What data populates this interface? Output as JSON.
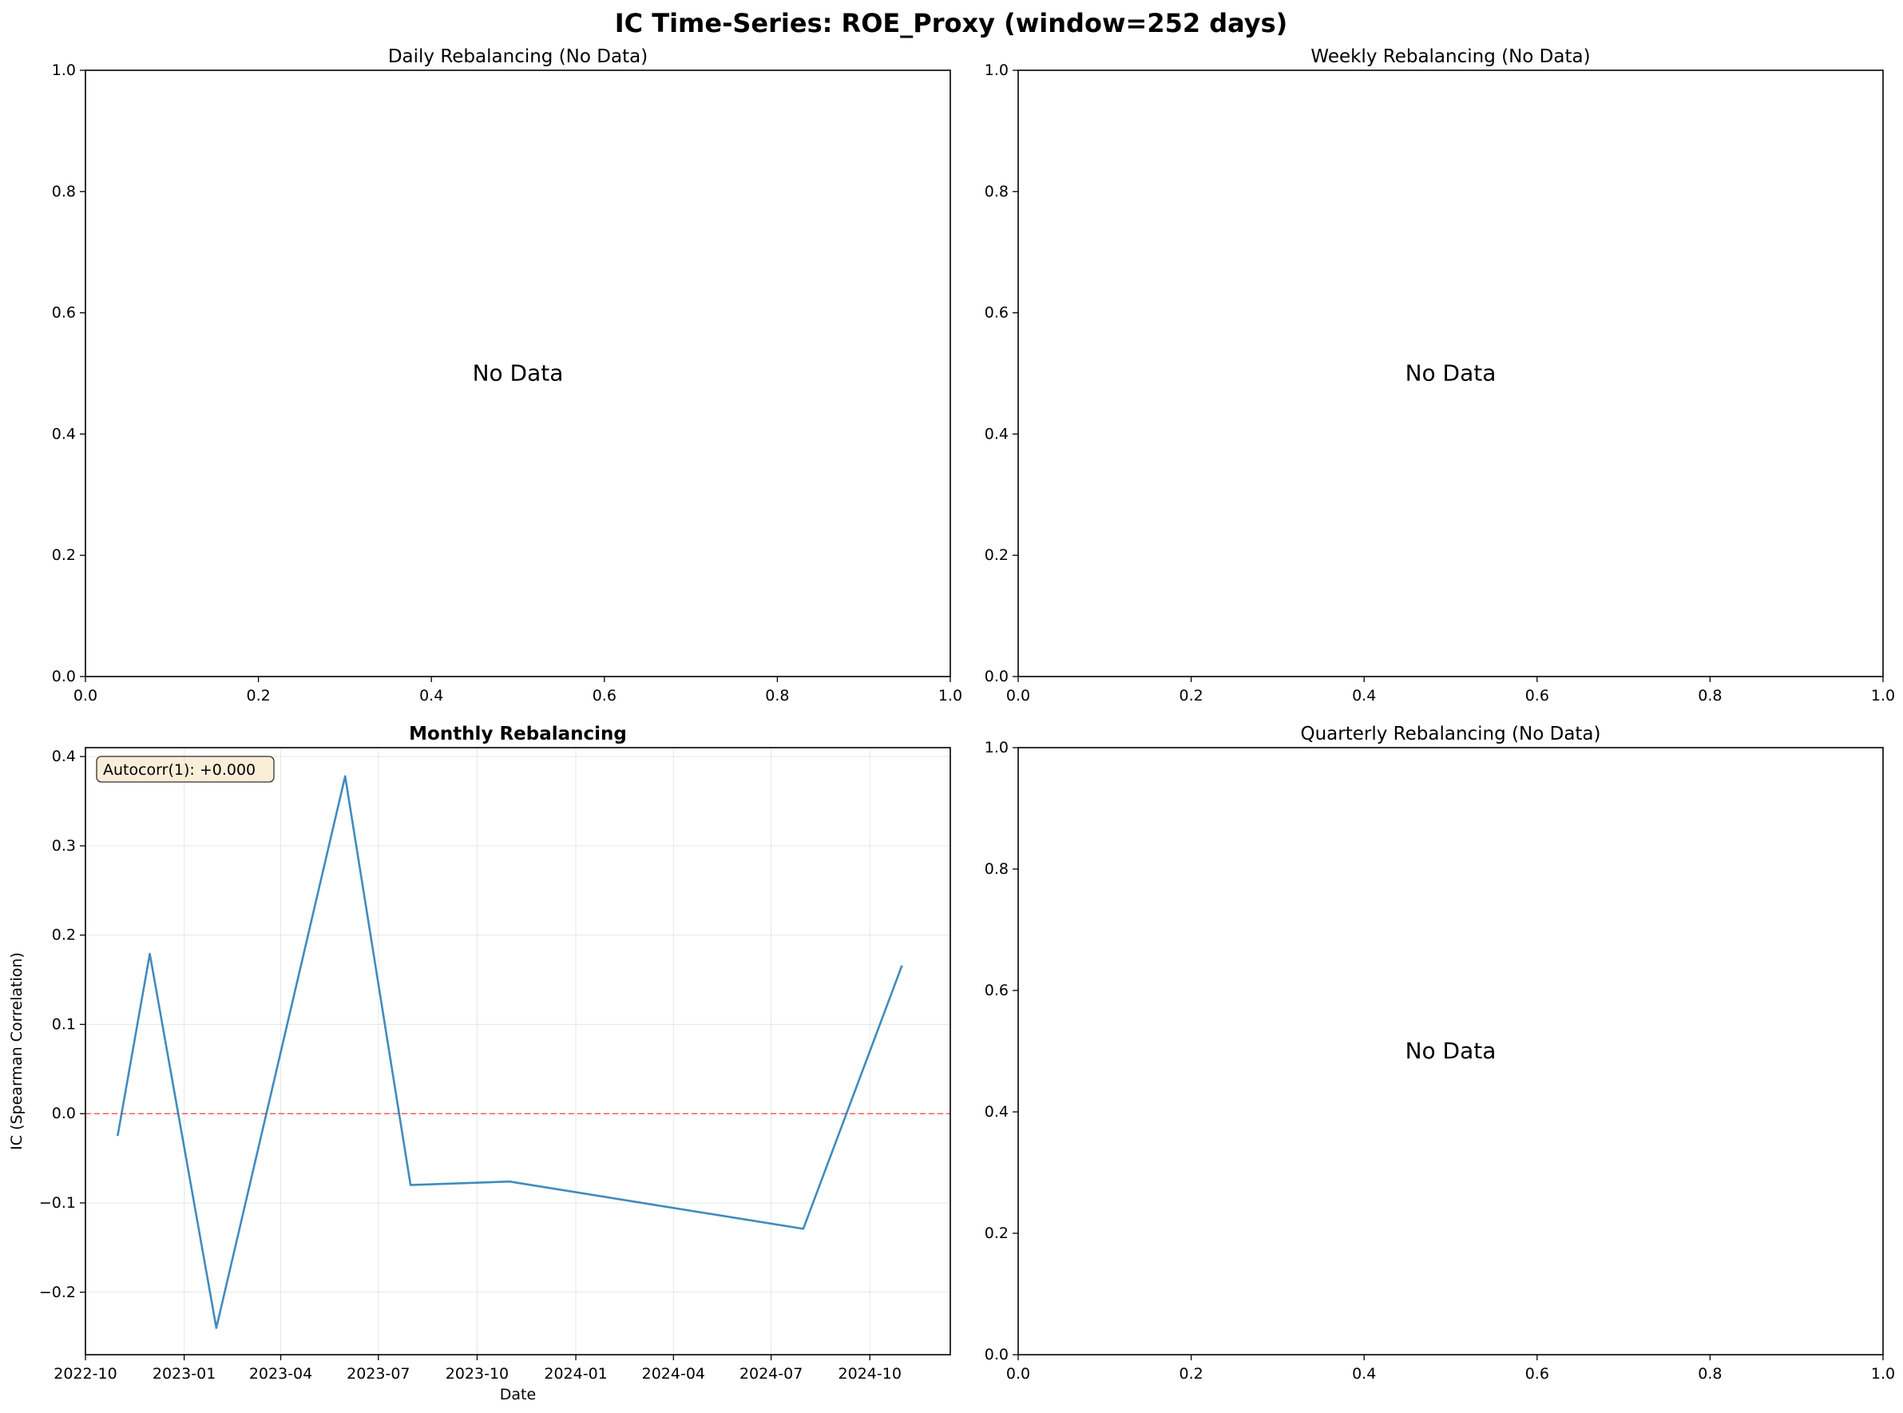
{
  "figure": {
    "suptitle": "IC Time-Series: ROE_Proxy (window=252 days)"
  },
  "chart_data": [
    {
      "panel": "daily",
      "type": "line",
      "title": "Daily Rebalancing (No Data)",
      "title_bold": false,
      "message": "No Data",
      "xlim": [
        0,
        1
      ],
      "ylim": [
        0,
        1
      ],
      "xticks": [
        "0.0",
        "0.2",
        "0.4",
        "0.6",
        "0.8",
        "1.0"
      ],
      "yticks": [
        "0.0",
        "0.2",
        "0.4",
        "0.6",
        "0.8",
        "1.0"
      ],
      "series": []
    },
    {
      "panel": "weekly",
      "type": "line",
      "title": "Weekly Rebalancing (No Data)",
      "title_bold": false,
      "message": "No Data",
      "xlim": [
        0,
        1
      ],
      "ylim": [
        0,
        1
      ],
      "xticks": [
        "0.0",
        "0.2",
        "0.4",
        "0.6",
        "0.8",
        "1.0"
      ],
      "yticks": [
        "0.0",
        "0.2",
        "0.4",
        "0.6",
        "0.8",
        "1.0"
      ],
      "series": []
    },
    {
      "panel": "monthly",
      "type": "line",
      "title": "Monthly Rebalancing",
      "title_bold": true,
      "xlabel": "Date",
      "ylabel": "IC (Spearman Correlation)",
      "xlim": [
        "2022-10-01",
        "2024-12-15"
      ],
      "ylim": [
        -0.27,
        0.41
      ],
      "xticks": [
        "2022-10",
        "2023-01",
        "2023-04",
        "2023-07",
        "2023-10",
        "2024-01",
        "2024-04",
        "2024-07",
        "2024-10"
      ],
      "yticks": [
        -0.2,
        -0.1,
        0.0,
        0.1,
        0.2,
        0.3,
        0.4
      ],
      "grid": true,
      "zero_line": {
        "y": 0.0,
        "color": "#ff0000",
        "style": "dashed"
      },
      "annotation": "Autocorr(1): +0.000",
      "series": [
        {
          "color": "#1f77b4",
          "points": [
            [
              "2022-10-31",
              -0.025
            ],
            [
              "2022-11-30",
              0.179
            ],
            [
              "2023-01-31",
              -0.24
            ],
            [
              "2023-05-31",
              0.378
            ],
            [
              "2023-07-31",
              -0.08
            ],
            [
              "2023-10-31",
              -0.076
            ],
            [
              "2024-07-31",
              -0.129
            ],
            [
              "2024-10-31",
              0.166
            ]
          ]
        }
      ]
    },
    {
      "panel": "quarterly",
      "type": "line",
      "title": "Quarterly Rebalancing (No Data)",
      "title_bold": false,
      "message": "No Data",
      "xlim": [
        0,
        1
      ],
      "ylim": [
        0,
        1
      ],
      "xticks": [
        "0.0",
        "0.2",
        "0.4",
        "0.6",
        "0.8",
        "1.0"
      ],
      "yticks": [
        "0.0",
        "0.2",
        "0.4",
        "0.6",
        "0.8",
        "1.0"
      ],
      "series": []
    }
  ]
}
